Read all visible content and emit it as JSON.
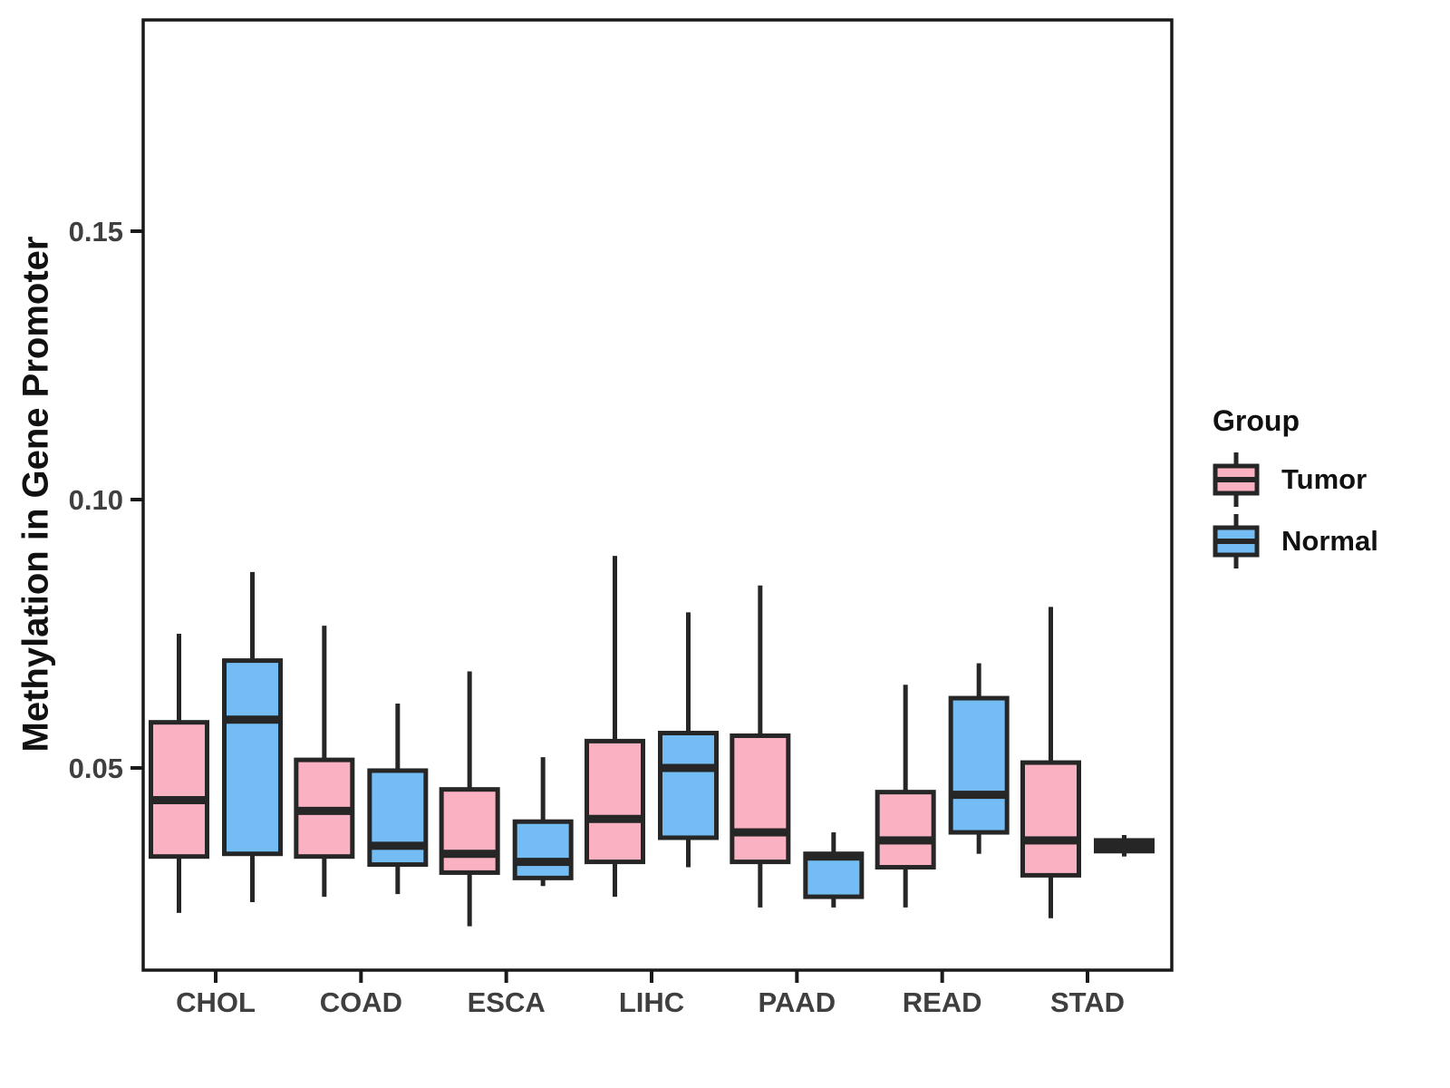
{
  "chart_data": {
    "type": "boxplot",
    "title": "",
    "xlabel": "",
    "ylabel": "Methylation in Gene Promoter",
    "categories": [
      "CHOL",
      "COAD",
      "ESCA",
      "LIHC",
      "PAAD",
      "READ",
      "STAD"
    ],
    "y_ticks": [
      {
        "value": 0.05,
        "label": "0.05"
      },
      {
        "value": 0.1,
        "label": "0.10"
      },
      {
        "value": 0.15,
        "label": "0.15"
      }
    ],
    "ylim": [
      0.0123,
      0.1894
    ],
    "grid": false,
    "panel_border": true,
    "legend": {
      "title": "Group",
      "position": "right",
      "entries": [
        {
          "label": "Tumor",
          "color": "#FAB2C2"
        },
        {
          "label": "Normal",
          "color": "#73BDF4"
        }
      ]
    },
    "series": [
      {
        "name": "Tumor",
        "color": "#FAB2C2",
        "boxes": [
          {
            "category": "CHOL",
            "lower_whisker": 0.023,
            "q1": 0.0335,
            "median": 0.044,
            "q3": 0.0585,
            "upper_whisker": 0.075
          },
          {
            "category": "COAD",
            "lower_whisker": 0.026,
            "q1": 0.0335,
            "median": 0.042,
            "q3": 0.0515,
            "upper_whisker": 0.0765
          },
          {
            "category": "ESCA",
            "lower_whisker": 0.0205,
            "q1": 0.0305,
            "median": 0.034,
            "q3": 0.046,
            "upper_whisker": 0.068
          },
          {
            "category": "LIHC",
            "lower_whisker": 0.026,
            "q1": 0.0325,
            "median": 0.0405,
            "q3": 0.055,
            "upper_whisker": 0.0895
          },
          {
            "category": "PAAD",
            "lower_whisker": 0.024,
            "q1": 0.0325,
            "median": 0.038,
            "q3": 0.056,
            "upper_whisker": 0.084
          },
          {
            "category": "READ",
            "lower_whisker": 0.024,
            "q1": 0.0315,
            "median": 0.0365,
            "q3": 0.0455,
            "upper_whisker": 0.0655
          },
          {
            "category": "STAD",
            "lower_whisker": 0.022,
            "q1": 0.03,
            "median": 0.0365,
            "q3": 0.051,
            "upper_whisker": 0.08
          }
        ]
      },
      {
        "name": "Normal",
        "color": "#73BDF4",
        "boxes": [
          {
            "category": "CHOL",
            "lower_whisker": 0.025,
            "q1": 0.034,
            "median": 0.059,
            "q3": 0.07,
            "upper_whisker": 0.0865
          },
          {
            "category": "COAD",
            "lower_whisker": 0.0265,
            "q1": 0.032,
            "median": 0.0355,
            "q3": 0.0495,
            "upper_whisker": 0.062
          },
          {
            "category": "ESCA",
            "lower_whisker": 0.028,
            "q1": 0.0295,
            "median": 0.0325,
            "q3": 0.04,
            "upper_whisker": 0.052
          },
          {
            "category": "LIHC",
            "lower_whisker": 0.0315,
            "q1": 0.037,
            "median": 0.05,
            "q3": 0.0565,
            "upper_whisker": 0.079
          },
          {
            "category": "PAAD",
            "lower_whisker": 0.024,
            "q1": 0.026,
            "median": 0.0335,
            "q3": 0.034,
            "upper_whisker": 0.038
          },
          {
            "category": "READ",
            "lower_whisker": 0.034,
            "q1": 0.038,
            "median": 0.045,
            "q3": 0.063,
            "upper_whisker": 0.0695
          },
          {
            "category": "STAD",
            "lower_whisker": 0.0335,
            "q1": 0.0345,
            "median": 0.0355,
            "q3": 0.0365,
            "upper_whisker": 0.0375
          }
        ]
      }
    ],
    "colors": {
      "box_border": "#262626",
      "median": "#262626",
      "axis_text": "#3F3F3F",
      "panel_border": "#1A1A1A",
      "background": "#FFFFFF"
    }
  }
}
